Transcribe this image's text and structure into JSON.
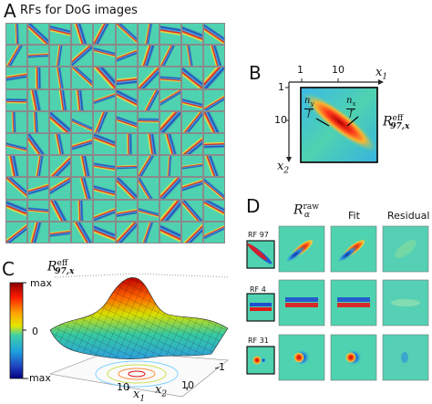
{
  "panel_a": {
    "letter": "A",
    "title": "RFs for DoG images"
  },
  "panel_b": {
    "letter": "B",
    "x_tick_1": "1",
    "x_tick_10": "10",
    "x_axis_label": "x",
    "x_axis_sub": "1",
    "y_tick_1": "1",
    "y_tick_10": "10",
    "y_axis_label": "x",
    "y_axis_sub": "2",
    "ny_num": "n",
    "ny_sub": "y",
    "ny_den": "f",
    "nx_num": "n",
    "nx_sub": "x",
    "nx_den": "f",
    "rf_label_R": "R",
    "rf_label_sup": "eff",
    "rf_label_sub": "97,x"
  },
  "panel_c": {
    "letter": "C",
    "title_R": "R",
    "title_sup": "eff",
    "title_sub": "97,x",
    "colorbar_max": "max",
    "colorbar_zero": "0",
    "colorbar_min": "-max",
    "x1_tick_10": "10",
    "x2_tick_10": "10",
    "x2_tick_1": "1",
    "x1_label": "x",
    "x1_sub": "1",
    "x2_label": "x",
    "x2_sub": "2"
  },
  "panel_d": {
    "letter": "D",
    "col_raw_R": "R",
    "col_raw_sup": "raw",
    "col_raw_sub": "α",
    "col_fit": "Fit",
    "col_residual": "Residual",
    "rows": [
      {
        "label": "RF 97"
      },
      {
        "label": "RF 4"
      },
      {
        "label": "RF 31"
      }
    ]
  },
  "colors": {
    "background_field": "#4fd2b0",
    "positive": "#e31a1c",
    "negative": "#1f3fbf",
    "tile_border": "#8a8a8a"
  }
}
